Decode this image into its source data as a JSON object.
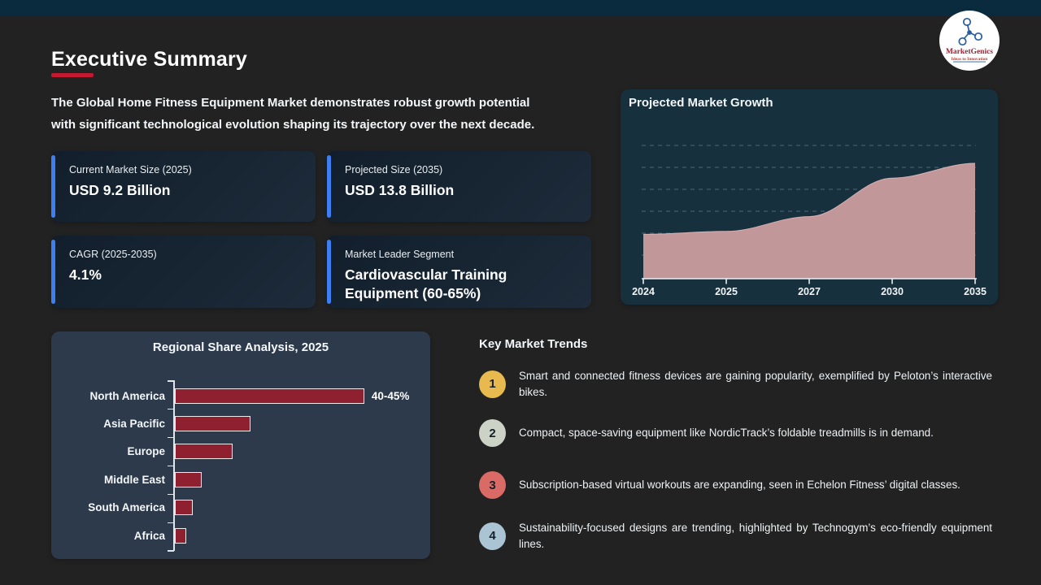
{
  "page": {
    "title": "Executive Summary",
    "intro": [
      "The Global Home Fitness Equipment Market demonstrates robust growth potential",
      "with significant technological evolution shaping its trajectory over the next decade."
    ]
  },
  "logo": {
    "brand": "MarketGenics",
    "tagline": "Ideas to Innovation"
  },
  "colors": {
    "accent_red": "#c4192e",
    "card_accent_blue": "#3d7ff0",
    "bar_red": "#8e2030",
    "area_rose": "#c2979a",
    "trend_circle_colors": [
      "#e8b94f",
      "#ccd3c6",
      "#d96a66",
      "#aac4d3"
    ]
  },
  "stat_cards": [
    {
      "label": "Current Market Size (2025)",
      "value": "USD 9.2 Billion"
    },
    {
      "label": "Projected Size (2035)",
      "value": "USD 13.8 Billion"
    },
    {
      "label": "CAGR (2025-2035)",
      "value": "4.1%"
    },
    {
      "label": "Market Leader Segment",
      "value": "Cardiovascular Training Equipment (60-65%)"
    }
  ],
  "chart_data": [
    {
      "type": "area",
      "title": "Projected Market Growth",
      "x_labels": [
        "2024",
        "2025",
        "2027",
        "2030",
        "2035"
      ],
      "values": [
        9.0,
        9.2,
        10.2,
        12.8,
        13.8
      ],
      "unit": "USD Billion",
      "ylim": [
        6,
        15
      ],
      "grid": "horizontal-dashed",
      "legend": "none"
    },
    {
      "type": "bar",
      "title": "Regional Share Analysis, 2025",
      "orientation": "horizontal",
      "categories": [
        "North America",
        "Asia Pacific",
        "Europe",
        "Middle East",
        "South America",
        "Africa"
      ],
      "values": [
        42.5,
        17,
        13,
        6,
        4,
        2.5
      ],
      "data_labels": [
        "40-45%",
        "",
        "",
        "",
        "",
        ""
      ],
      "xlim": [
        0,
        50
      ],
      "unit": "% market share"
    }
  ],
  "trends": {
    "title": "Key Market Trends",
    "items": [
      {
        "num": "1",
        "text": "Smart and connected fitness devices are gaining popularity, exemplified by Peloton’s interactive bikes."
      },
      {
        "num": "2",
        "text": "Compact, space-saving equipment like NordicTrack’s foldable treadmills is in demand."
      },
      {
        "num": "3",
        "text": "Subscription-based virtual workouts are expanding, seen in Echelon Fitness’ digital classes."
      },
      {
        "num": "4",
        "text": "Sustainability-focused designs are trending, highlighted by Technogym’s eco-friendly equipment lines."
      }
    ]
  }
}
